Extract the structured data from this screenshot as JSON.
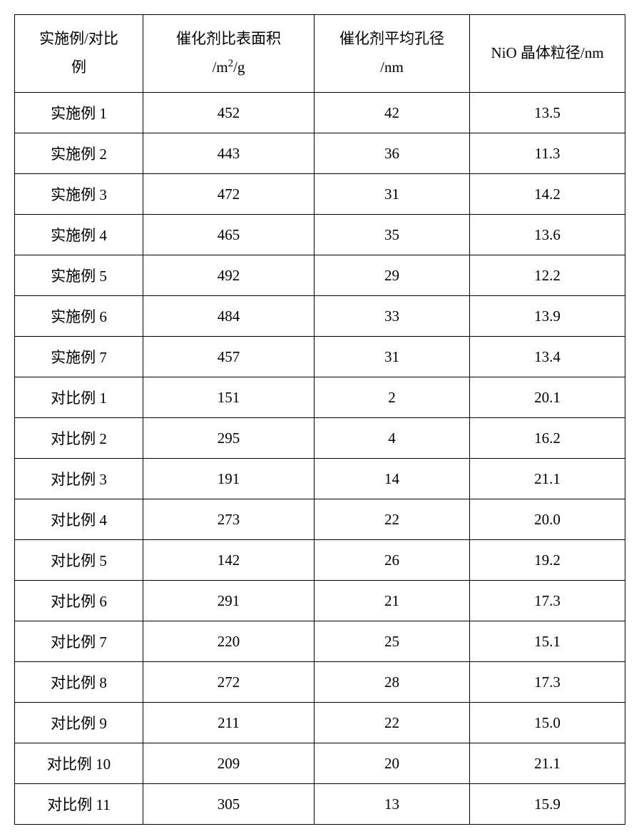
{
  "table": {
    "background_color": "#ffffff",
    "border_color": "#000000",
    "text_color": "#000000",
    "header_fontsize": 21,
    "cell_fontsize": 21,
    "columns": [
      {
        "line1": "实施例/对比",
        "line2": "例"
      },
      {
        "line1": "催化剂比表面积",
        "line2_prefix": "/m",
        "line2_sup": "2",
        "line2_suffix": "/g"
      },
      {
        "line1": "催化剂平均孔径",
        "line2": "/nm"
      },
      {
        "line1": "NiO 晶体粒径/nm",
        "line2": ""
      }
    ],
    "rows": [
      [
        "实施例 1",
        "452",
        "42",
        "13.5"
      ],
      [
        "实施例 2",
        "443",
        "36",
        "11.3"
      ],
      [
        "实施例 3",
        "472",
        "31",
        "14.2"
      ],
      [
        "实施例 4",
        "465",
        "35",
        "13.6"
      ],
      [
        "实施例 5",
        "492",
        "29",
        "12.2"
      ],
      [
        "实施例 6",
        "484",
        "33",
        "13.9"
      ],
      [
        "实施例 7",
        "457",
        "31",
        "13.4"
      ],
      [
        "对比例 1",
        "151",
        "2",
        "20.1"
      ],
      [
        "对比例 2",
        "295",
        "4",
        "16.2"
      ],
      [
        "对比例 3",
        "191",
        "14",
        "21.1"
      ],
      [
        "对比例 4",
        "273",
        "22",
        "20.0"
      ],
      [
        "对比例 5",
        "142",
        "26",
        "19.2"
      ],
      [
        "对比例 6",
        "291",
        "21",
        "17.3"
      ],
      [
        "对比例 7",
        "220",
        "25",
        "15.1"
      ],
      [
        "对比例 8",
        "272",
        "28",
        "17.3"
      ],
      [
        "对比例 9",
        "211",
        "22",
        "15.0"
      ],
      [
        "对比例 10",
        "209",
        "20",
        "21.1"
      ],
      [
        "对比例 11",
        "305",
        "13",
        "15.9"
      ]
    ]
  }
}
